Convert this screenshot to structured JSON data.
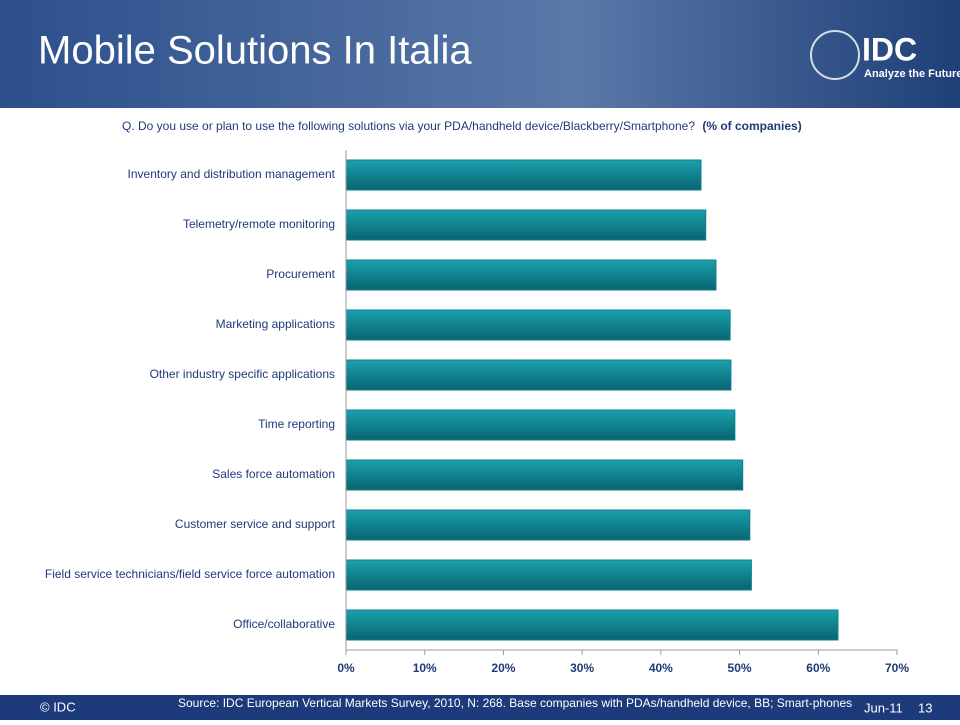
{
  "chart_data": {
    "type": "barh",
    "title": "Mobile Solutions In Italia",
    "subtitle": "Q. Do you use or plan to use the following solutions via your PDA/handheld device/Blackberry/Smartphone?",
    "subtitle_note": "(% of companies)",
    "categories": [
      "Inventory and distribution management",
      "Telemetry/remote monitoring",
      "Procurement",
      "Marketing applications",
      "Other industry specific applications",
      "Time reporting",
      "Sales force automation",
      "Customer service and support",
      "Field service technicians/field service force automation",
      "Office/collaborative"
    ],
    "values": [
      45.1,
      45.7,
      47.0,
      48.8,
      48.9,
      49.4,
      50.4,
      51.3,
      51.5,
      62.5
    ],
    "color": "#0e7f8e",
    "xlim": [
      0,
      70
    ],
    "xticks": [
      {
        "value": 0,
        "label": "0%"
      },
      {
        "value": 10,
        "label": "10%"
      },
      {
        "value": 20,
        "label": "20%"
      },
      {
        "value": 30,
        "label": "30%"
      },
      {
        "value": 40,
        "label": "40%"
      },
      {
        "value": 50,
        "label": "50%"
      },
      {
        "value": 60,
        "label": "60%"
      },
      {
        "value": 70,
        "label": "70%"
      }
    ],
    "source": "Source: IDC European Vertical Markets Survey, 2010, N: 268. Base companies with PDAs/handheld device, BB; Smart-phones"
  },
  "slide": {
    "logo": "IDC",
    "tagline": "Analyze the Future",
    "copyright": "© IDC",
    "date": "Jun-11",
    "page": "13"
  }
}
